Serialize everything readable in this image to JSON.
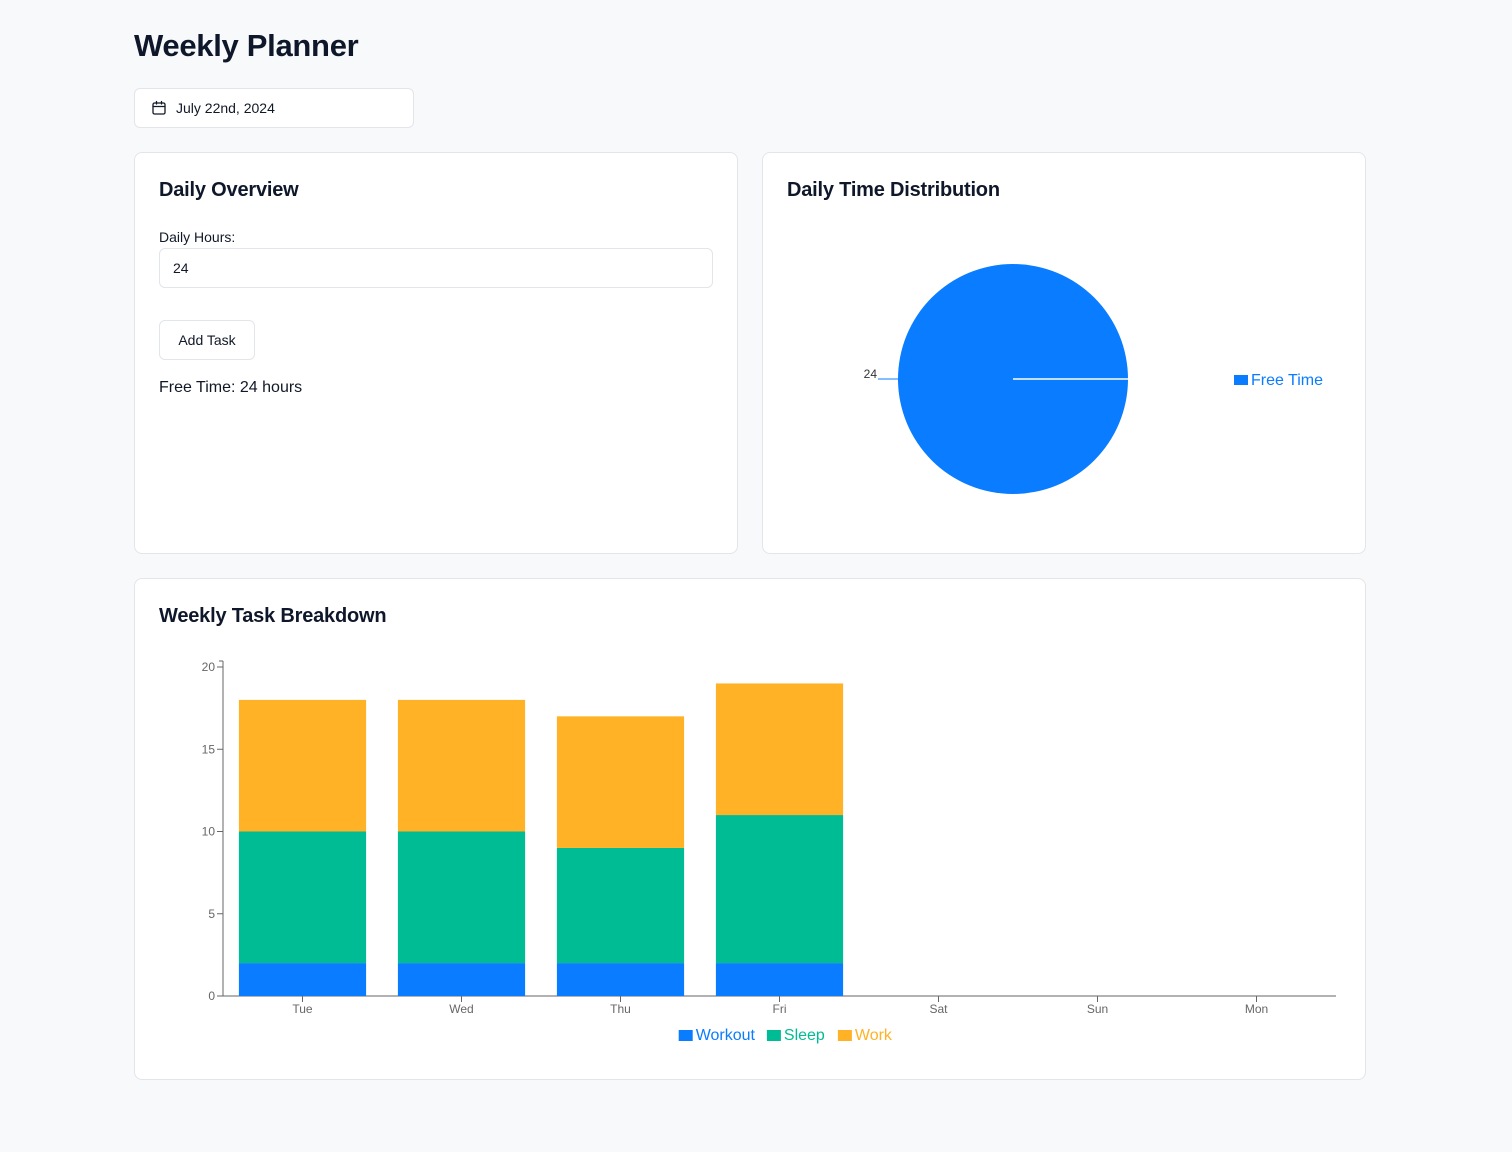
{
  "header": {
    "title": "Weekly Planner"
  },
  "date_picker": {
    "value": "July 22nd, 2024",
    "icon": "calendar-icon"
  },
  "overview": {
    "title": "Daily Overview",
    "hours_label": "Daily Hours:",
    "hours_value": "24",
    "add_task_label": "Add Task",
    "free_time_prefix": "Free Time:",
    "free_time_text": "Free Time: 24 hours"
  },
  "distribution": {
    "title": "Daily Time Distribution"
  },
  "weekly": {
    "title": "Weekly Task Breakdown"
  },
  "colors": {
    "workout": "#0a7cff",
    "sleep": "#00bc95",
    "work": "#ffb225",
    "free_time": "#0a7cff"
  },
  "chart_data": [
    {
      "type": "pie",
      "labels": [
        "Free Time"
      ],
      "values": [
        24
      ],
      "data_labels": [
        "24"
      ],
      "colors": [
        "#0a7cff"
      ],
      "legend": "right"
    },
    {
      "type": "bar",
      "stacked": true,
      "categories": [
        "Tue",
        "Wed",
        "Thu",
        "Fri",
        "Sat",
        "Sun",
        "Mon"
      ],
      "series": [
        {
          "name": "Workout",
          "color": "#0a7cff",
          "values": [
            2,
            2,
            2,
            2,
            0,
            0,
            0
          ]
        },
        {
          "name": "Sleep",
          "color": "#00bc95",
          "values": [
            8,
            8,
            7,
            9,
            0,
            0,
            0
          ]
        },
        {
          "name": "Work",
          "color": "#ffb225",
          "values": [
            8,
            8,
            8,
            8,
            0,
            0,
            0
          ]
        }
      ],
      "yticks": [
        "0",
        "5",
        "10",
        "15",
        "20"
      ],
      "ylim": [
        0,
        20
      ],
      "grid": false,
      "legend": "bottom-center"
    }
  ]
}
